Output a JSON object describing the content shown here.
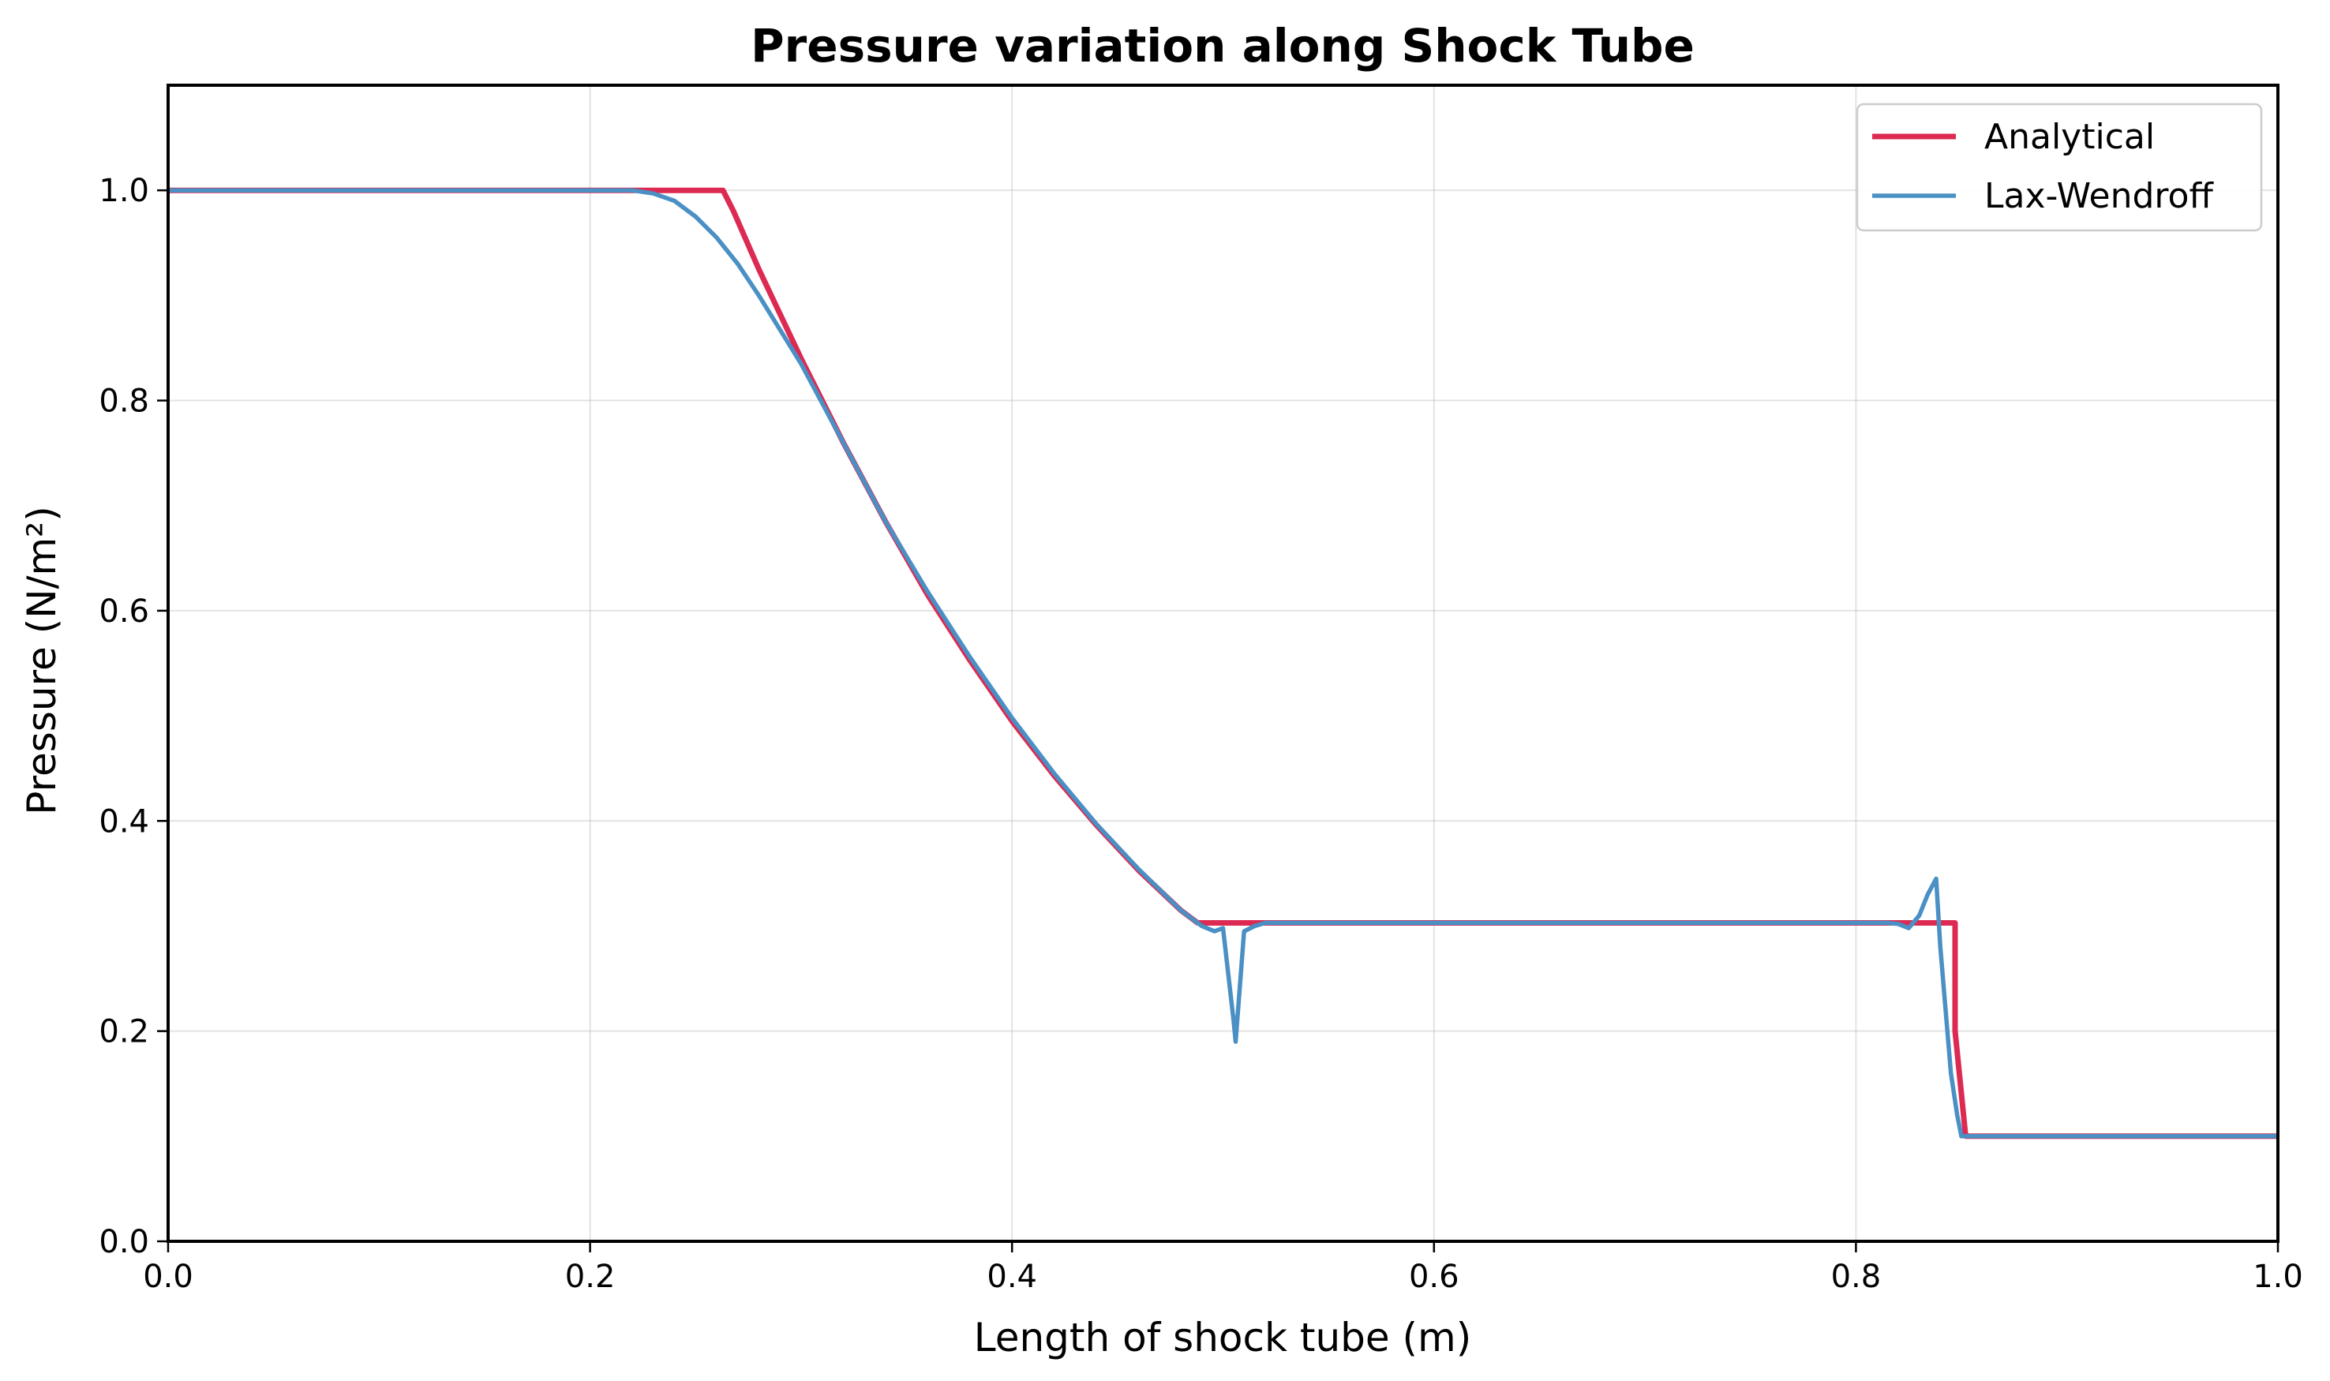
{
  "chart_data": {
    "type": "line",
    "title": "Pressure variation along Shock Tube",
    "xlabel": "Length of shock tube (m)",
    "ylabel": "Pressure (N/m²)",
    "xlim": [
      0.0,
      1.0
    ],
    "ylim": [
      0.0,
      1.1
    ],
    "xticks": [
      "0.0",
      "0.2",
      "0.4",
      "0.6",
      "0.8",
      "1.0"
    ],
    "yticks": [
      "0.0",
      "0.2",
      "0.4",
      "0.6",
      "0.8",
      "1.0"
    ],
    "grid": true,
    "legend_position": "top-right",
    "series": [
      {
        "name": "Analytical",
        "color": "#dc2a52",
        "x": [
          0.0,
          0.263,
          0.268,
          0.28,
          0.3,
          0.32,
          0.34,
          0.36,
          0.38,
          0.4,
          0.42,
          0.44,
          0.46,
          0.48,
          0.488,
          0.5,
          0.6,
          0.7,
          0.8,
          0.847,
          0.847,
          0.852,
          0.9,
          1.0
        ],
        "y": [
          1.0,
          1.0,
          0.98,
          0.925,
          0.84,
          0.76,
          0.685,
          0.615,
          0.553,
          0.495,
          0.443,
          0.396,
          0.353,
          0.315,
          0.303,
          0.303,
          0.303,
          0.303,
          0.303,
          0.303,
          0.2,
          0.1,
          0.1,
          0.1
        ]
      },
      {
        "name": "Lax-Wendroff",
        "color": "#4a90c4",
        "x": [
          0.0,
          0.22,
          0.23,
          0.24,
          0.25,
          0.26,
          0.27,
          0.28,
          0.3,
          0.32,
          0.34,
          0.36,
          0.38,
          0.4,
          0.42,
          0.44,
          0.46,
          0.48,
          0.49,
          0.496,
          0.5,
          0.505,
          0.506,
          0.51,
          0.515,
          0.52,
          0.6,
          0.7,
          0.8,
          0.815,
          0.82,
          0.825,
          0.83,
          0.834,
          0.838,
          0.84,
          0.845,
          0.848,
          0.85,
          0.853,
          0.9,
          1.0
        ],
        "y": [
          1.0,
          1.0,
          0.997,
          0.99,
          0.975,
          0.955,
          0.93,
          0.9,
          0.835,
          0.76,
          0.685,
          0.618,
          0.556,
          0.498,
          0.445,
          0.397,
          0.354,
          0.315,
          0.3,
          0.295,
          0.298,
          0.21,
          0.19,
          0.295,
          0.3,
          0.303,
          0.303,
          0.303,
          0.303,
          0.303,
          0.302,
          0.298,
          0.31,
          0.33,
          0.345,
          0.28,
          0.16,
          0.12,
          0.1,
          0.1,
          0.1,
          0.1
        ]
      }
    ]
  }
}
